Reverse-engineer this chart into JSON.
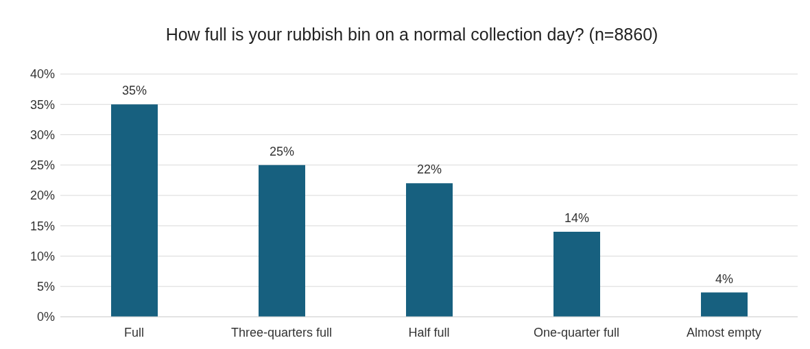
{
  "chart_data": {
    "type": "bar",
    "title": "How full is your rubbish bin on a normal collection day? (n=8860)",
    "categories": [
      "Full",
      "Three-quarters full",
      "Half full",
      "One-quarter full",
      "Almost empty"
    ],
    "values": [
      35,
      25,
      22,
      14,
      4
    ],
    "value_labels": [
      "35%",
      "25%",
      "22%",
      "14%",
      "4%"
    ],
    "color": "#17607f",
    "ylim": [
      0,
      40
    ],
    "yticks": [
      {
        "value": 0,
        "label": "0%"
      },
      {
        "value": 5,
        "label": "5%"
      },
      {
        "value": 10,
        "label": "10%"
      },
      {
        "value": 15,
        "label": "15%"
      },
      {
        "value": 20,
        "label": "20%"
      },
      {
        "value": 25,
        "label": "25%"
      },
      {
        "value": 30,
        "label": "30%"
      },
      {
        "value": 35,
        "label": "35%"
      },
      {
        "value": 40,
        "label": "40%"
      }
    ],
    "grid": "y"
  }
}
